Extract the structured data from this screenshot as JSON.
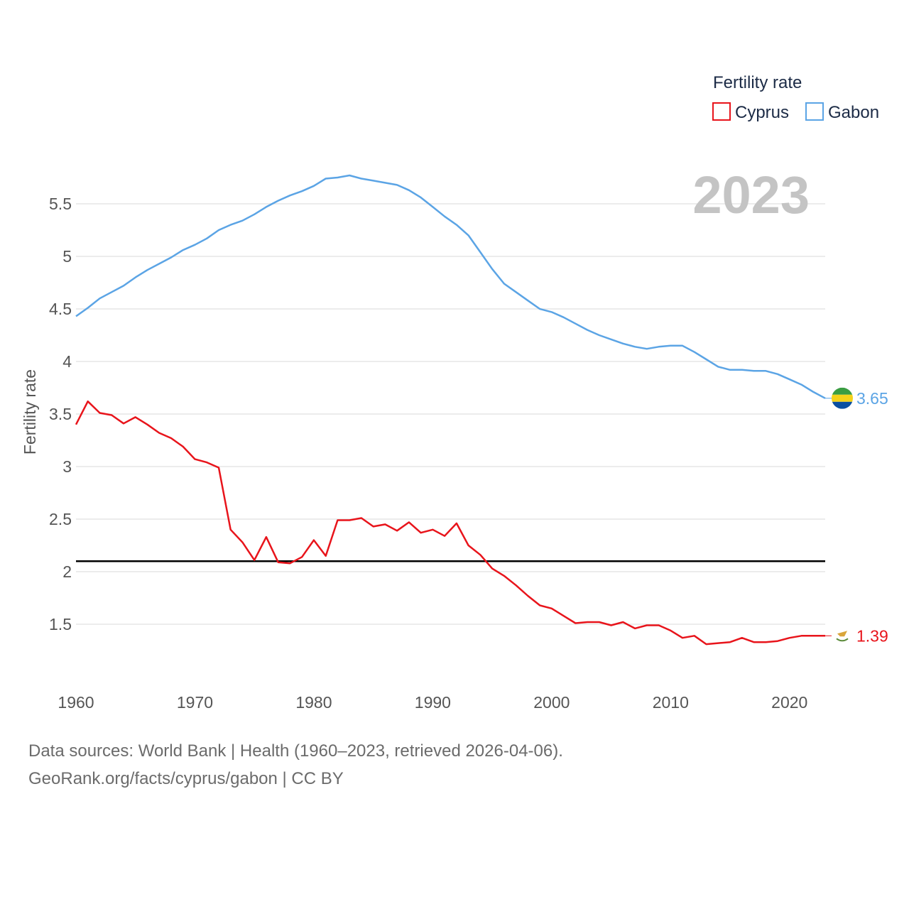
{
  "chart_data": {
    "type": "line",
    "title": "",
    "xlabel": "",
    "ylabel": "Fertility rate",
    "xlim": [
      1960,
      2023
    ],
    "ylim": [
      1.0,
      6.0
    ],
    "x_ticks": [
      1960,
      1970,
      1980,
      1990,
      2000,
      2010,
      2020
    ],
    "y_ticks": [
      1.5,
      2,
      2.5,
      3,
      3.5,
      4,
      4.5,
      5,
      5.5
    ],
    "y_tick_labels": [
      "1.5",
      "2",
      "2.5",
      "3",
      "3.5",
      "4",
      "4.5",
      "5",
      "5.5"
    ],
    "grid": true,
    "legend_title": "Fertility rate",
    "legend_position": "top-right",
    "year_label": "2023",
    "reference_line": {
      "y": 2.1,
      "color": "#000000"
    },
    "x": [
      1960,
      1961,
      1962,
      1963,
      1964,
      1965,
      1966,
      1967,
      1968,
      1969,
      1970,
      1971,
      1972,
      1973,
      1974,
      1975,
      1976,
      1977,
      1978,
      1979,
      1980,
      1981,
      1982,
      1983,
      1984,
      1985,
      1986,
      1987,
      1988,
      1989,
      1990,
      1991,
      1992,
      1993,
      1994,
      1995,
      1996,
      1997,
      1998,
      1999,
      2000,
      2001,
      2002,
      2003,
      2004,
      2005,
      2006,
      2007,
      2008,
      2009,
      2010,
      2011,
      2012,
      2013,
      2014,
      2015,
      2016,
      2017,
      2018,
      2019,
      2020,
      2021,
      2022,
      2023
    ],
    "series": [
      {
        "name": "Cyprus",
        "color": "#e8141b",
        "end_label": "1.39",
        "values": [
          3.4,
          3.62,
          3.51,
          3.49,
          3.41,
          3.47,
          3.4,
          3.32,
          3.27,
          3.19,
          3.07,
          3.04,
          2.99,
          2.4,
          2.28,
          2.11,
          2.33,
          2.09,
          2.08,
          2.14,
          2.3,
          2.15,
          2.49,
          2.49,
          2.51,
          2.43,
          2.45,
          2.39,
          2.47,
          2.37,
          2.4,
          2.34,
          2.46,
          2.25,
          2.16,
          2.03,
          1.96,
          1.87,
          1.77,
          1.68,
          1.65,
          1.58,
          1.51,
          1.52,
          1.52,
          1.49,
          1.52,
          1.46,
          1.49,
          1.49,
          1.44,
          1.37,
          1.39,
          1.31,
          1.32,
          1.33,
          1.37,
          1.33,
          1.33,
          1.34,
          1.37,
          1.39,
          1.39,
          1.39
        ]
      },
      {
        "name": "Gabon",
        "color": "#5ba4e5",
        "end_label": "3.65",
        "values": [
          4.43,
          4.51,
          4.6,
          4.66,
          4.72,
          4.8,
          4.87,
          4.93,
          4.99,
          5.06,
          5.11,
          5.17,
          5.25,
          5.3,
          5.34,
          5.4,
          5.47,
          5.53,
          5.58,
          5.62,
          5.67,
          5.74,
          5.75,
          5.77,
          5.74,
          5.72,
          5.7,
          5.68,
          5.63,
          5.56,
          5.47,
          5.38,
          5.3,
          5.2,
          5.04,
          4.88,
          4.74,
          4.66,
          4.58,
          4.5,
          4.47,
          4.42,
          4.36,
          4.3,
          4.25,
          4.21,
          4.17,
          4.14,
          4.12,
          4.14,
          4.15,
          4.15,
          4.09,
          4.02,
          3.95,
          3.92,
          3.92,
          3.91,
          3.91,
          3.88,
          3.83,
          3.78,
          3.71,
          3.65
        ]
      }
    ]
  },
  "footer": {
    "line1": "Data sources: World Bank | Health (1960–2023, retrieved 2026-04-06).",
    "line2": "GeoRank.org/facts/cyprus/gabon | CC BY"
  }
}
